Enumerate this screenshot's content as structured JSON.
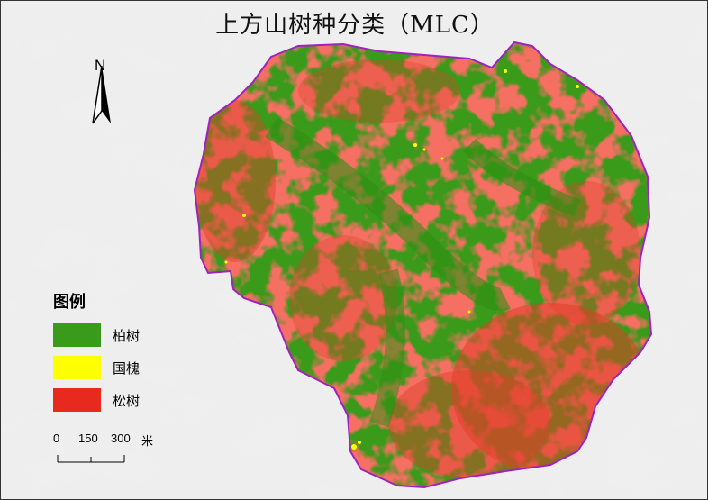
{
  "map": {
    "title": "上方山树种分类（MLC）",
    "north_label": "N",
    "legend": {
      "title": "图例",
      "items": [
        {
          "label": "柏树",
          "color": "#3a9a1a"
        },
        {
          "label": "国槐",
          "color": "#ffff00"
        },
        {
          "label": "松树",
          "color": "#e8291e"
        }
      ]
    },
    "scale_bar": {
      "ticks": [
        "0",
        "150",
        "300"
      ],
      "unit": "米"
    },
    "colors": {
      "hillshade_bg": "#d9d9d9",
      "boundary": "#a020c0"
    }
  }
}
